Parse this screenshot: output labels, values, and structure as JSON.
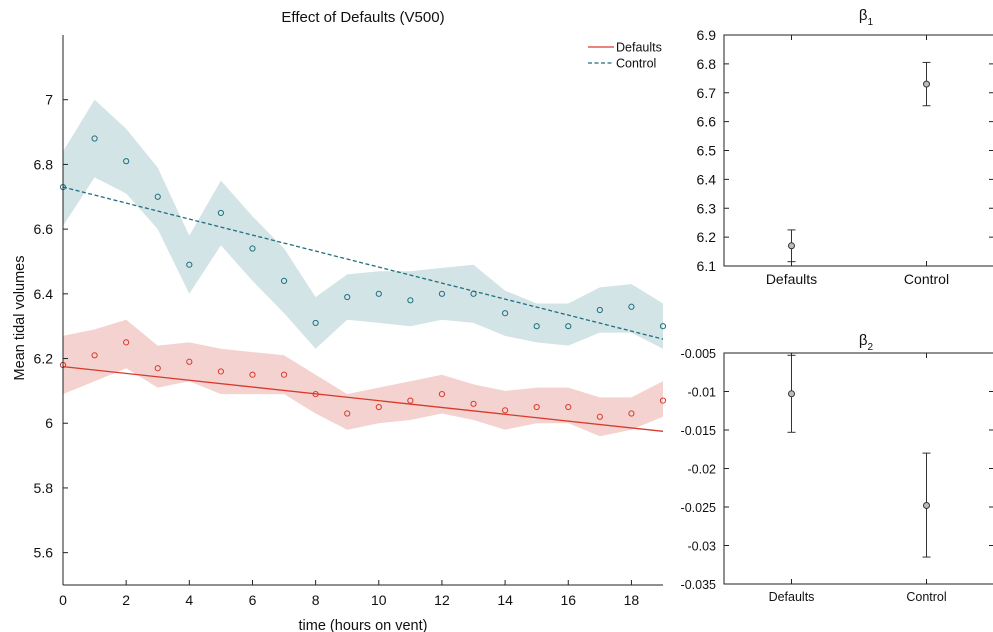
{
  "chart_data": [
    {
      "type": "scatter",
      "title": "Effect of Defaults (V500)",
      "xlabel": "time (hours on vent)",
      "ylabel": "Mean tidal volumes",
      "xlim": [
        0,
        19
      ],
      "ylim": [
        5.5,
        7.2
      ],
      "xticks": [
        "0",
        "2",
        "4",
        "6",
        "8",
        "10",
        "12",
        "14",
        "16",
        "18"
      ],
      "yticks": [
        "5.6",
        "5.8",
        "6",
        "6.2",
        "6.4",
        "6.6",
        "6.8",
        "7"
      ],
      "legend_position": "top-right",
      "series": [
        {
          "name": "Defaults",
          "color": "#d93a2b",
          "band_color": "#f4d2d0",
          "line_style": "solid",
          "x": [
            0,
            1,
            2,
            3,
            4,
            5,
            6,
            7,
            8,
            9,
            10,
            11,
            12,
            13,
            14,
            15,
            16,
            17,
            18,
            19
          ],
          "y": [
            6.18,
            6.21,
            6.25,
            6.17,
            6.19,
            6.16,
            6.15,
            6.15,
            6.09,
            6.03,
            6.05,
            6.07,
            6.09,
            6.06,
            6.04,
            6.05,
            6.05,
            6.02,
            6.03,
            6.07
          ],
          "upper": [
            6.27,
            6.29,
            6.32,
            6.24,
            6.25,
            6.23,
            6.22,
            6.21,
            6.15,
            6.09,
            6.11,
            6.13,
            6.15,
            6.12,
            6.1,
            6.11,
            6.11,
            6.08,
            6.08,
            6.13
          ],
          "lower": [
            6.09,
            6.13,
            6.17,
            6.11,
            6.13,
            6.09,
            6.09,
            6.09,
            6.03,
            5.98,
            6.0,
            6.01,
            6.03,
            6.01,
            5.98,
            6.0,
            6.0,
            5.96,
            5.98,
            6.02
          ],
          "fit": [
            6.175,
            5.975
          ]
        },
        {
          "name": "Control",
          "color": "#1f6f80",
          "band_color": "#d3e4e6",
          "line_style": "dashed",
          "x": [
            0,
            1,
            2,
            3,
            4,
            5,
            6,
            7,
            8,
            9,
            10,
            11,
            12,
            13,
            14,
            15,
            16,
            17,
            18,
            19
          ],
          "y": [
            6.73,
            6.88,
            6.81,
            6.7,
            6.49,
            6.65,
            6.54,
            6.44,
            6.31,
            6.39,
            6.4,
            6.38,
            6.4,
            6.4,
            6.34,
            6.3,
            6.3,
            6.35,
            6.36,
            6.3
          ],
          "upper": [
            6.84,
            7.0,
            6.91,
            6.79,
            6.58,
            6.75,
            6.64,
            6.54,
            6.39,
            6.46,
            6.47,
            6.47,
            6.48,
            6.49,
            6.41,
            6.37,
            6.37,
            6.42,
            6.43,
            6.37
          ],
          "lower": [
            6.61,
            6.76,
            6.71,
            6.6,
            6.4,
            6.55,
            6.44,
            6.34,
            6.23,
            6.32,
            6.31,
            6.3,
            6.32,
            6.31,
            6.27,
            6.25,
            6.24,
            6.28,
            6.28,
            6.23
          ],
          "fit": [
            6.73,
            6.26
          ]
        }
      ]
    },
    {
      "type": "errorbar",
      "title": "β",
      "title_subscript": "1",
      "categories": [
        "Defaults",
        "Control"
      ],
      "values": [
        6.17,
        6.73
      ],
      "error_low": [
        6.115,
        6.655
      ],
      "error_high": [
        6.225,
        6.805
      ],
      "ylim": [
        6.1,
        6.9
      ],
      "yticks": [
        "6.1",
        "6.2",
        "6.3",
        "6.4",
        "6.5",
        "6.6",
        "6.7",
        "6.8",
        "6.9"
      ]
    },
    {
      "type": "errorbar",
      "title": "β",
      "title_subscript": "2",
      "categories": [
        "Defaults",
        "Control"
      ],
      "values": [
        -0.0103,
        -0.0248
      ],
      "error_low": [
        -0.0153,
        -0.0315
      ],
      "error_high": [
        -0.0053,
        -0.018
      ],
      "ylim": [
        -0.035,
        -0.005
      ],
      "yticks": [
        "-0.035",
        "-0.03",
        "-0.025",
        "-0.02",
        "-0.015",
        "-0.01",
        "-0.005"
      ]
    }
  ]
}
